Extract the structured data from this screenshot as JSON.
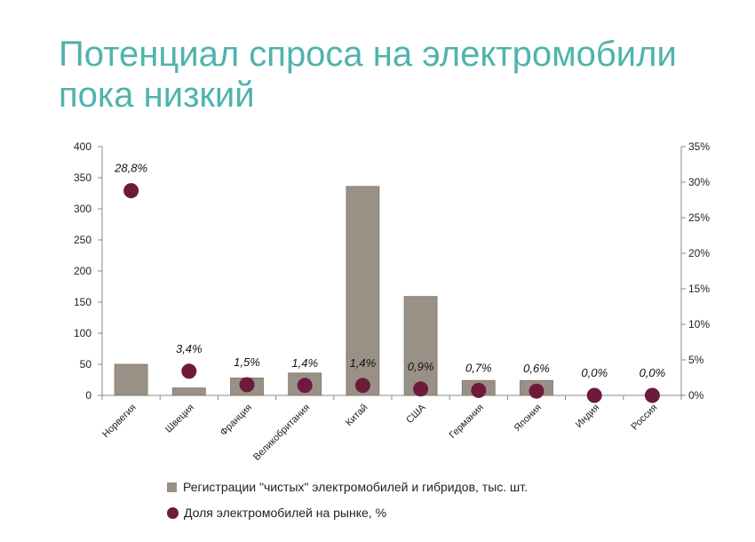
{
  "title_line1": "Потенциал спроса на электромобили",
  "title_line2": "пока низкий",
  "colors": {
    "title": "#4fb3ad",
    "bar": "#9a9186",
    "bar_stroke": "#7d7468",
    "dot": "#6d1a3d",
    "axis": "#888888"
  },
  "chart_data": {
    "type": "bar",
    "categories": [
      "Норвегия",
      "Швеция",
      "Франция",
      "Великобритания",
      "Китай",
      "США",
      "Германия",
      "Япония",
      "Индия",
      "Россия"
    ],
    "series": [
      {
        "name": "Регистрации \"чистых\" электромобилей и гибридов, тыс. шт.",
        "type": "bar",
        "axis": "left",
        "values": [
          50,
          12,
          28,
          36,
          336,
          159,
          24,
          24,
          0,
          0
        ]
      },
      {
        "name": "Доля электромобилей на рынке, %",
        "type": "scatter",
        "axis": "right",
        "values": [
          28.8,
          3.4,
          1.5,
          1.4,
          1.4,
          0.9,
          0.7,
          0.6,
          0.0,
          0.0
        ],
        "labels": [
          "28,8%",
          "3,4%",
          "1,5%",
          "1,4%",
          "1,4%",
          "0,9%",
          "0,7%",
          "0,6%",
          "0,0%",
          "0,0%"
        ]
      }
    ],
    "y_left": {
      "ylim": [
        0,
        400
      ],
      "ticks": [
        "0",
        "50",
        "100",
        "150",
        "200",
        "250",
        "300",
        "350",
        "400"
      ]
    },
    "y_right": {
      "ylim": [
        0,
        35
      ],
      "ticks": [
        "0%",
        "5%",
        "10%",
        "15%",
        "20%",
        "25%",
        "30%",
        "35%"
      ]
    },
    "legend_position": "bottom",
    "grid": false
  }
}
